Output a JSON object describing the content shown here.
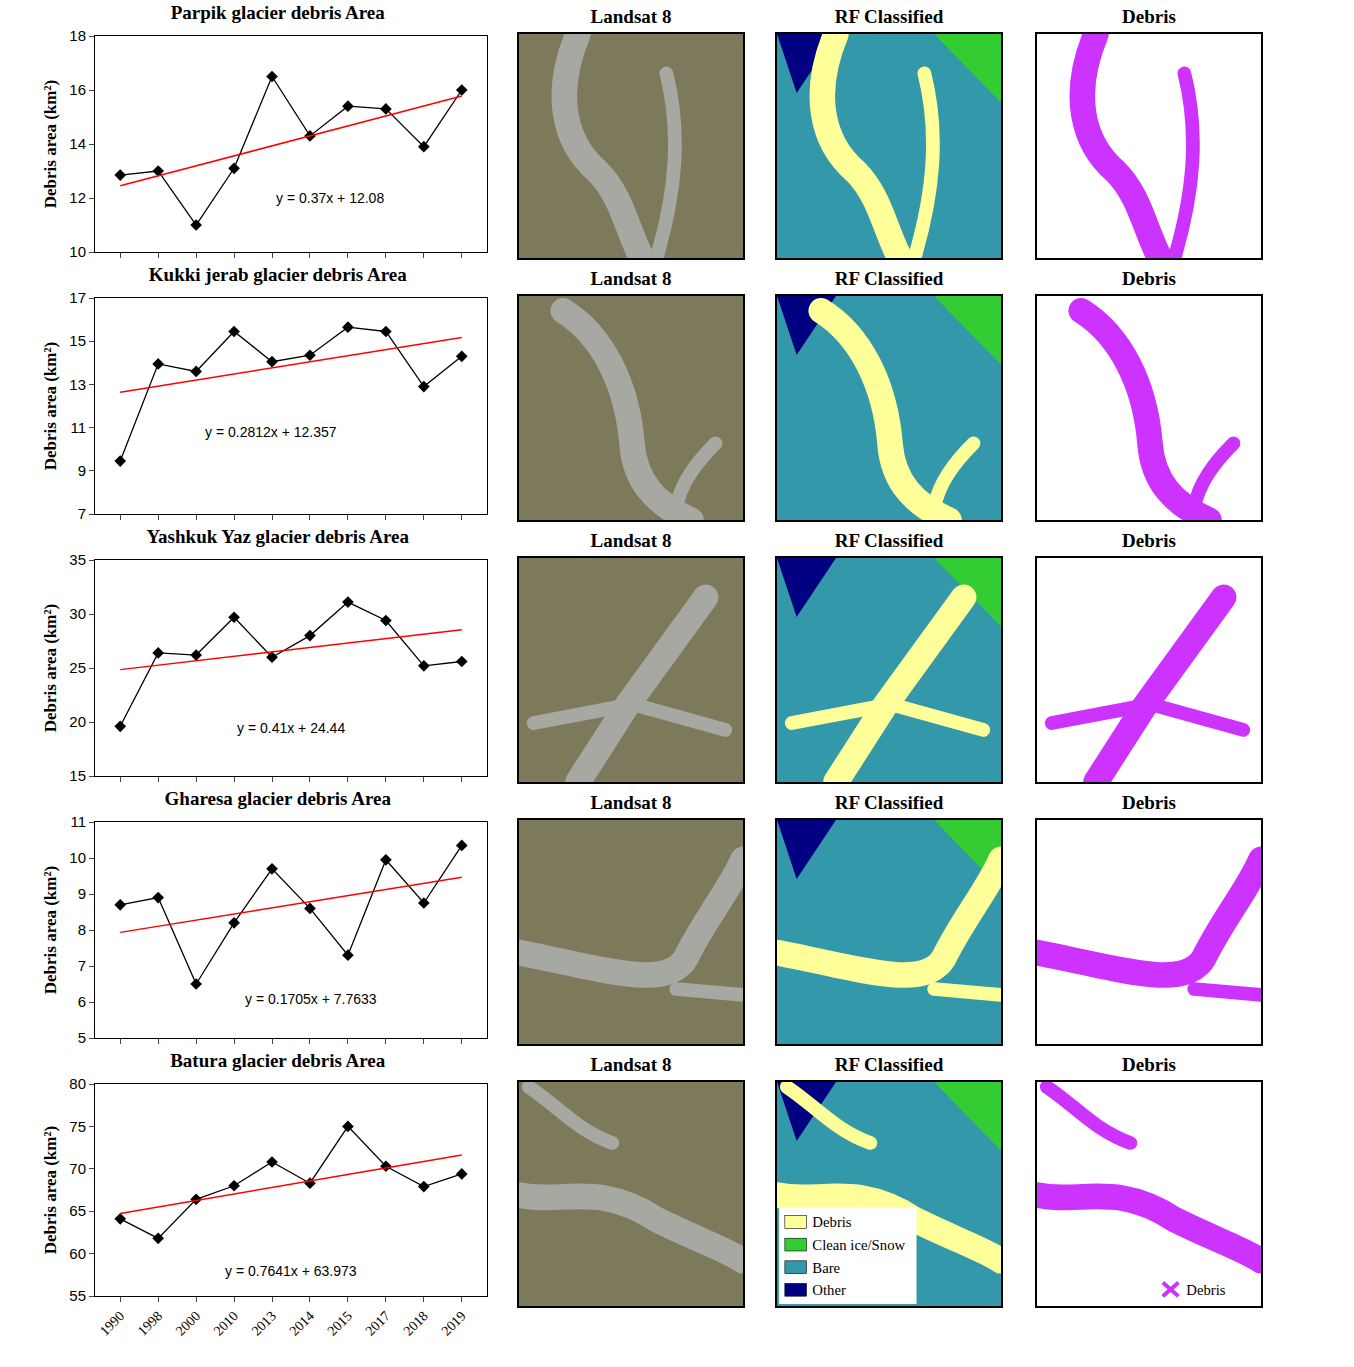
{
  "chart_data": [
    {
      "type": "line",
      "title": "Parpik glacier debris Area",
      "ylabel": "Debris area (km²)",
      "categories": [
        "1990",
        "1998",
        "2000",
        "2010",
        "2013",
        "2014",
        "2015",
        "2017",
        "2018",
        "2019"
      ],
      "values": [
        12.85,
        13.0,
        11.0,
        13.1,
        16.5,
        14.3,
        15.4,
        15.3,
        13.9,
        16.0
      ],
      "color": "#000000",
      "marker": "diamond",
      "ylim": [
        10,
        18
      ],
      "yticks": [
        10,
        12,
        14,
        16,
        18
      ],
      "grid": false,
      "tick_labels": "y",
      "trendline": {
        "slope": 0.37,
        "intercept": 12.08,
        "label": "y = 0.37x + 12.08",
        "color": "#ff0000"
      }
    },
    {
      "type": "line",
      "title": "Kukki jerab glacier debris Area",
      "ylabel": "Debris area (km²)",
      "categories": [
        "1990",
        "1998",
        "2000",
        "2010",
        "2013",
        "2014",
        "2015",
        "2017",
        "2018",
        "2019"
      ],
      "values": [
        9.45,
        13.95,
        13.6,
        15.45,
        14.05,
        14.35,
        15.65,
        15.45,
        12.9,
        14.3
      ],
      "color": "#000000",
      "marker": "diamond",
      "ylim": [
        7,
        17
      ],
      "yticks": [
        7,
        9,
        11,
        13,
        15,
        17
      ],
      "grid": false,
      "tick_labels": "y",
      "trendline": {
        "slope": 0.2812,
        "intercept": 12.357,
        "label": "y = 0.2812x + 12.357",
        "color": "#ff0000"
      }
    },
    {
      "type": "line",
      "title": "Yashkuk Yaz glacier debris Area",
      "ylabel": "Debris area (km²)",
      "categories": [
        "1990",
        "1998",
        "2000",
        "2010",
        "2013",
        "2014",
        "2015",
        "2017",
        "2018",
        "2019"
      ],
      "values": [
        19.6,
        26.4,
        26.2,
        29.7,
        26.0,
        28.0,
        31.1,
        29.4,
        25.2,
        25.6
      ],
      "color": "#000000",
      "marker": "diamond",
      "ylim": [
        15,
        35
      ],
      "yticks": [
        15,
        20,
        25,
        30,
        35
      ],
      "grid": false,
      "tick_labels": "y",
      "trendline": {
        "slope": 0.41,
        "intercept": 24.44,
        "label": "y = 0.41x + 24.44",
        "color": "#ff0000"
      }
    },
    {
      "type": "line",
      "title": "Gharesa glacier debris Area",
      "ylabel": "Debris area (km²)",
      "categories": [
        "1990",
        "1998",
        "2000",
        "2010",
        "2013",
        "2014",
        "2015",
        "2017",
        "2018",
        "2019"
      ],
      "values": [
        8.7,
        8.9,
        6.5,
        8.2,
        9.7,
        8.6,
        7.3,
        9.95,
        8.75,
        10.35
      ],
      "color": "#000000",
      "marker": "diamond",
      "ylim": [
        5,
        11
      ],
      "yticks": [
        5,
        6,
        7,
        8,
        9,
        10,
        11
      ],
      "grid": false,
      "tick_labels": "y",
      "trendline": {
        "slope": 0.1705,
        "intercept": 7.7633,
        "label": "y = 0.1705x + 7.7633",
        "color": "#ff0000"
      }
    },
    {
      "type": "line",
      "title": "Batura glacier debris Area",
      "ylabel": "Debris area (km²)",
      "categories": [
        "1990",
        "1998",
        "2000",
        "2010",
        "2013",
        "2014",
        "2015",
        "2017",
        "2018",
        "2019"
      ],
      "values": [
        64.1,
        61.8,
        66.4,
        68.0,
        70.8,
        68.3,
        75.0,
        70.3,
        67.9,
        69.4
      ],
      "color": "#000000",
      "marker": "diamond",
      "ylim": [
        55,
        80
      ],
      "yticks": [
        55,
        60,
        65,
        70,
        75,
        80
      ],
      "grid": false,
      "trendline": {
        "slope": 0.7641,
        "intercept": 63.973,
        "label": "y = 0.7641x + 63.973",
        "color": "#ff0000"
      }
    }
  ],
  "map_panels": {
    "titles": [
      "Landsat 8",
      "RF Classified",
      "Debris"
    ],
    "classified_legend": [
      {
        "label": "Debris",
        "color": "#ffff99"
      },
      {
        "label": "Clean ice/Snow",
        "color": "#33cc33"
      },
      {
        "label": "Bare",
        "color": "#3399aa"
      },
      {
        "label": "Other",
        "color": "#000080"
      }
    ],
    "debris_legend": {
      "label": "Debris",
      "color": "#cc33ff"
    }
  }
}
